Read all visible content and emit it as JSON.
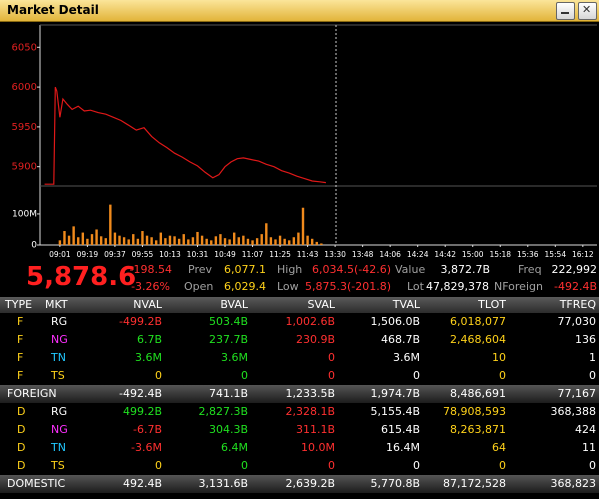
{
  "window_title": "Market Detail",
  "chart_data": [
    {
      "type": "line",
      "color": "#e01818",
      "x": [
        -10,
        -4,
        -3,
        -2,
        0,
        2,
        5,
        8,
        12,
        16,
        20,
        25,
        30,
        35,
        40,
        45,
        50,
        55,
        60,
        65,
        70,
        75,
        80,
        85,
        90,
        95,
        100,
        104,
        108,
        112,
        116,
        120,
        125,
        130,
        135,
        140,
        145,
        150,
        155,
        160,
        165,
        170,
        174
      ],
      "values": [
        5878,
        5878,
        6000,
        5995,
        5962,
        5985,
        5978,
        5972,
        5976,
        5970,
        5971,
        5968,
        5966,
        5962,
        5958,
        5952,
        5946,
        5949,
        5938,
        5930,
        5924,
        5917,
        5912,
        5906,
        5901,
        5893,
        5886,
        5890,
        5900,
        5906,
        5910,
        5911,
        5909,
        5907,
        5903,
        5900,
        5895,
        5892,
        5888,
        5885,
        5882,
        5881,
        5880
      ],
      "xlim": [
        -13,
        348
      ],
      "ylim": [
        5877,
        6078
      ],
      "yticks": [
        5900,
        5950,
        6000,
        6050
      ]
    },
    {
      "type": "bar",
      "color": "#f08a1c",
      "x": [
        0,
        3,
        6,
        9,
        12,
        15,
        18,
        21,
        24,
        27,
        30,
        33,
        36,
        39,
        42,
        45,
        48,
        51,
        54,
        57,
        60,
        63,
        66,
        69,
        72,
        75,
        78,
        81,
        84,
        87,
        90,
        93,
        96,
        99,
        102,
        105,
        108,
        111,
        114,
        117,
        120,
        123,
        126,
        129,
        132,
        135,
        138,
        141,
        144,
        147,
        150,
        153,
        156,
        159,
        162,
        165,
        168,
        171
      ],
      "values": [
        15,
        45,
        30,
        60,
        25,
        40,
        20,
        35,
        50,
        28,
        22,
        130,
        40,
        30,
        25,
        18,
        35,
        20,
        45,
        30,
        25,
        15,
        40,
        22,
        30,
        28,
        20,
        35,
        18,
        25,
        42,
        30,
        20,
        15,
        28,
        35,
        22,
        18,
        40,
        25,
        30,
        20,
        15,
        22,
        35,
        70,
        25,
        18,
        30,
        20,
        15,
        25,
        40,
        120,
        30,
        20,
        10,
        5
      ],
      "xlim": [
        -13,
        348
      ],
      "ylim": [
        0,
        161
      ],
      "yticks": [
        0,
        {
          "value": 100,
          "label": "100M"
        }
      ],
      "xticks": [
        {
          "value": 0,
          "label": "09:01"
        },
        {
          "value": 18,
          "label": "09:19"
        },
        {
          "value": 36,
          "label": "09:37"
        },
        {
          "value": 54,
          "label": "09:55"
        },
        {
          "value": 72,
          "label": "10:13"
        },
        {
          "value": 90,
          "label": "10:31"
        },
        {
          "value": 108,
          "label": "10:49"
        },
        {
          "value": 126,
          "label": "11:07"
        },
        {
          "value": 144,
          "label": "11:25"
        },
        {
          "value": 162,
          "label": "11:43"
        },
        {
          "value": 180,
          "label": "13:30"
        },
        {
          "value": 198,
          "label": "13:48"
        },
        {
          "value": 216,
          "label": "14:06"
        },
        {
          "value": 234,
          "label": "14:24"
        },
        {
          "value": 252,
          "label": "14:42"
        },
        {
          "value": 270,
          "label": "15:00"
        },
        {
          "value": 288,
          "label": "15:18"
        },
        {
          "value": 306,
          "label": "15:36"
        },
        {
          "value": 324,
          "label": "15:54"
        },
        {
          "value": 342,
          "label": "16:12"
        }
      ]
    }
  ],
  "summary": {
    "last": "5,878.6",
    "change": "-198.54",
    "change_pct": "-3.26%",
    "fields": [
      {
        "label": "Prev",
        "value": "6,077.1"
      },
      {
        "label": "High",
        "value": "6,034.5(-42.6)"
      },
      {
        "label": "Value",
        "value": "3,872.7B"
      },
      {
        "label": "Freq",
        "value": "222,992"
      },
      {
        "label": "Open",
        "value": "6,029.4"
      },
      {
        "label": "Low",
        "value": "5,875.3(-201.8)"
      },
      {
        "label": "Lot",
        "value": "47,829,378"
      },
      {
        "label": "NForeign",
        "value": "-492.4B"
      }
    ]
  },
  "table": {
    "columns": [
      "TYPE",
      "MKT",
      "NVAL",
      "BVAL",
      "SVAL",
      "TVAL",
      "TLOT",
      "TFREQ"
    ],
    "rows": [
      [
        "F",
        "RG",
        "-499.2B",
        "503.4B",
        "1,002.6B",
        "1,506.0B",
        "6,018,077",
        "77,030"
      ],
      [
        "F",
        "NG",
        "6.7B",
        "237.7B",
        "230.9B",
        "468.7B",
        "2,468,604",
        "136"
      ],
      [
        "F",
        "TN",
        "3.6M",
        "3.6M",
        "0",
        "3.6M",
        "10",
        "1"
      ],
      [
        "F",
        "TS",
        "0",
        "0",
        "0",
        "0",
        "0",
        "0"
      ],
      [
        "FOREIGN",
        "-492.4B",
        "741.1B",
        "1,233.5B",
        "1,974.7B",
        "8,486,691",
        "77,167"
      ],
      [
        "D",
        "RG",
        "499.2B",
        "2,827.3B",
        "2,328.1B",
        "5,155.4B",
        "78,908,593",
        "368,388"
      ],
      [
        "D",
        "NG",
        "-6.7B",
        "304.3B",
        "311.1B",
        "615.4B",
        "8,263,871",
        "424"
      ],
      [
        "D",
        "TN",
        "-3.6M",
        "6.4M",
        "10.0M",
        "16.4M",
        "64",
        "11"
      ],
      [
        "D",
        "TS",
        "0",
        "0",
        "0",
        "0",
        "0",
        "0"
      ],
      [
        "DOMESTIC",
        "492.4B",
        "3,131.6B",
        "2,639.2B",
        "5,770.8B",
        "87,172,528",
        "368,823"
      ]
    ]
  }
}
